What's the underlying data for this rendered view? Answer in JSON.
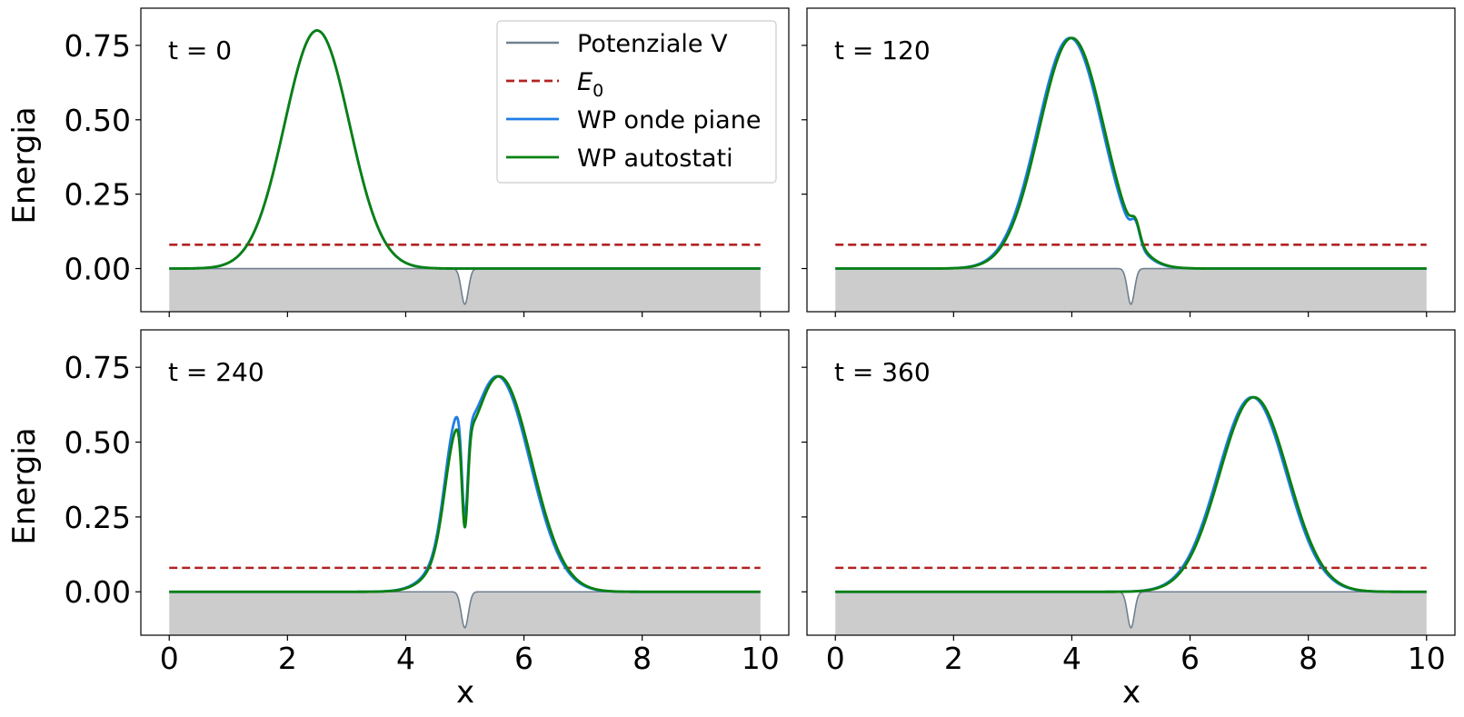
{
  "figure": {
    "ylabel": "Energia",
    "xlabel": "x",
    "legend": {
      "placement": "top-right of first panel",
      "entries": [
        {
          "key": "V",
          "label": "Potenziale V",
          "style": "solid",
          "color": "#708090"
        },
        {
          "key": "E0",
          "label_main": "E",
          "label_sub": "0",
          "style": "dashed",
          "color": "#b22222"
        },
        {
          "key": "pw",
          "label": "WP onde piane",
          "style": "solid",
          "color": "#1e7de6"
        },
        {
          "key": "es",
          "label": "WP autostati",
          "style": "solid",
          "color": "#0a8010"
        }
      ]
    }
  },
  "chart_data": [
    {
      "type": "line",
      "title": "t = 0",
      "xlim": [
        -0.48,
        10.48
      ],
      "ylim": [
        -0.145,
        0.875
      ],
      "xticks": [
        0,
        2,
        4,
        6,
        8,
        10
      ],
      "yticks": [
        0.0,
        0.25,
        0.5,
        0.75
      ],
      "ytick_labels": [
        "0.00",
        "0.25",
        "0.50",
        "0.75"
      ],
      "potential": {
        "baseline": 0.0,
        "well_center": 5.0,
        "well_depth": -0.12,
        "well_width": 0.06,
        "fill": "#cccccc"
      },
      "E0": 0.08,
      "series": [
        {
          "name": "WP onde piane",
          "components": [
            {
              "amp": 0.8,
              "mu": 2.5,
              "sigma": 0.55
            }
          ]
        },
        {
          "name": "WP autostati",
          "components": [
            {
              "amp": 0.8,
              "mu": 2.5,
              "sigma": 0.55
            }
          ]
        }
      ]
    },
    {
      "type": "line",
      "title": "t = 120",
      "xlim": [
        -0.48,
        10.48
      ],
      "ylim": [
        -0.145,
        0.875
      ],
      "xticks": [
        0,
        2,
        4,
        6,
        8,
        10
      ],
      "yticks": [
        0.0,
        0.25,
        0.5,
        0.75
      ],
      "potential": {
        "baseline": 0.0,
        "well_center": 5.0,
        "well_depth": -0.12,
        "well_width": 0.06,
        "fill": "#cccccc"
      },
      "E0": 0.08,
      "series": [
        {
          "name": "WP onde piane",
          "components": [
            {
              "amp": 0.775,
              "mu": 3.97,
              "sigma": 0.55
            },
            {
              "amp": 0.06,
              "mu": 5.08,
              "sigma": 0.07
            }
          ]
        },
        {
          "name": "WP autostati",
          "components": [
            {
              "amp": 0.775,
              "mu": 4.0,
              "sigma": 0.55
            },
            {
              "amp": 0.055,
              "mu": 5.08,
              "sigma": 0.07
            }
          ]
        }
      ]
    },
    {
      "type": "line",
      "title": "t = 240",
      "xlim": [
        -0.48,
        10.48
      ],
      "ylim": [
        -0.145,
        0.875
      ],
      "xticks": [
        0,
        2,
        4,
        6,
        8,
        10
      ],
      "yticks": [
        0.0,
        0.25,
        0.5,
        0.75
      ],
      "potential": {
        "baseline": 0.0,
        "well_center": 5.0,
        "well_depth": -0.12,
        "well_width": 0.06,
        "fill": "#cccccc"
      },
      "E0": 0.08,
      "series": [
        {
          "name": "WP onde piane",
          "components": [
            {
              "amp": 0.72,
              "mu": 5.55,
              "sigma": 0.55
            },
            {
              "amp": 0.27,
              "mu": 4.82,
              "sigma": 0.17
            },
            {
              "amp": -0.34,
              "mu": 5.0,
              "sigma": 0.05
            }
          ]
        },
        {
          "name": "WP autostati",
          "components": [
            {
              "amp": 0.72,
              "mu": 5.58,
              "sigma": 0.55
            },
            {
              "amp": 0.25,
              "mu": 4.82,
              "sigma": 0.17
            },
            {
              "amp": -0.34,
              "mu": 5.0,
              "sigma": 0.05
            }
          ]
        }
      ]
    },
    {
      "type": "line",
      "title": "t = 360",
      "xlim": [
        -0.48,
        10.48
      ],
      "ylim": [
        -0.145,
        0.875
      ],
      "xticks": [
        0,
        2,
        4,
        6,
        8,
        10
      ],
      "yticks": [
        0.0,
        0.25,
        0.5,
        0.75
      ],
      "potential": {
        "baseline": 0.0,
        "well_center": 5.0,
        "well_depth": -0.12,
        "well_width": 0.06,
        "fill": "#cccccc"
      },
      "E0": 0.08,
      "series": [
        {
          "name": "WP onde piane",
          "components": [
            {
              "amp": 0.65,
              "mu": 7.05,
              "sigma": 0.58
            }
          ]
        },
        {
          "name": "WP autostati",
          "components": [
            {
              "amp": 0.65,
              "mu": 7.08,
              "sigma": 0.58
            }
          ]
        }
      ]
    }
  ]
}
